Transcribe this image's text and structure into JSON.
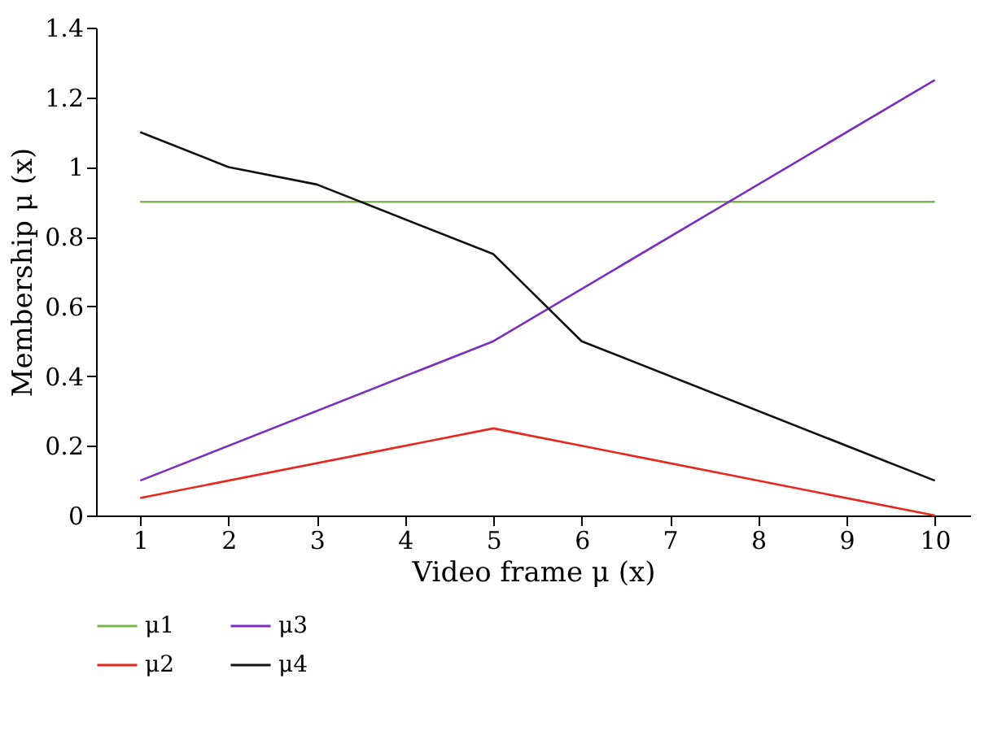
{
  "chart_data": {
    "type": "line",
    "xlabel": "Video frame μ (x)",
    "ylabel": "Membership μ (x)",
    "xlim": [
      0.5,
      10.4
    ],
    "xticks": [
      1,
      2,
      3,
      4,
      5,
      6,
      7,
      8,
      9,
      10
    ],
    "ylim": [
      0,
      1.4
    ],
    "yticks": [
      0,
      0.2,
      0.4,
      0.6,
      0.8,
      1,
      1.2,
      1.4
    ],
    "grid": false,
    "legend": "bottom left",
    "marker": "none",
    "line_style": "solid",
    "series": [
      {
        "name": "μ1",
        "color": "#7ab648",
        "x": [
          1,
          10
        ],
        "values": [
          0.9,
          0.9
        ]
      },
      {
        "name": "μ2",
        "color": "#e8261c",
        "x": [
          1,
          5,
          10
        ],
        "values": [
          0.05,
          0.25,
          0
        ]
      },
      {
        "name": "μ3",
        "color": "#7b2fbe",
        "x": [
          1,
          5,
          10
        ],
        "values": [
          0.1,
          0.5,
          1.25
        ]
      },
      {
        "name": "μ4",
        "color": "#111111",
        "x": [
          1,
          2,
          3,
          5,
          6,
          10
        ],
        "values": [
          1.1,
          1.0,
          0.95,
          0.75,
          0.5,
          0.1
        ]
      }
    ]
  }
}
